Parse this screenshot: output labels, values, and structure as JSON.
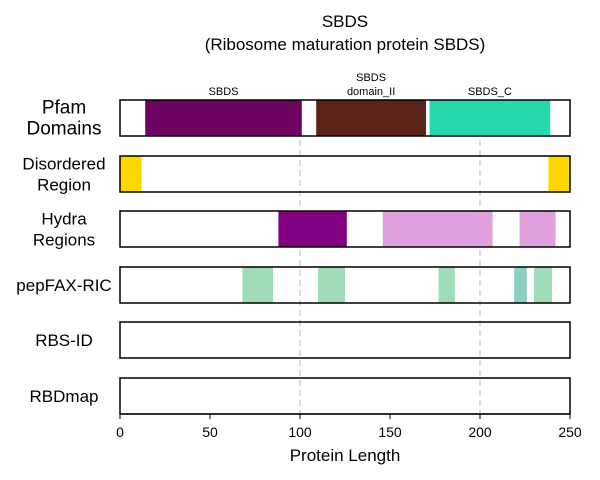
{
  "chart_data": {
    "type": "domain-track",
    "title": "SBDS",
    "subtitle": "(Ribosome maturation protein SBDS)",
    "xlabel": "Protein Length",
    "xlim": [
      0,
      250
    ],
    "xticks": [
      0,
      50,
      100,
      150,
      200,
      250
    ],
    "vlines": [
      100,
      200
    ],
    "tracks": [
      {
        "id": "pfam",
        "label_lines": [
          "Pfam",
          "Domains"
        ],
        "segments": [
          {
            "start": 14,
            "end": 101,
            "color": "#6d0461",
            "label_lines": [
              "SBDS"
            ]
          },
          {
            "start": 109,
            "end": 170,
            "color": "#5c2418",
            "label_lines": [
              "SBDS",
              "domain_II"
            ]
          },
          {
            "start": 172,
            "end": 239,
            "color": "#26d9ad",
            "label_lines": [
              "SBDS_C"
            ]
          }
        ]
      },
      {
        "id": "disordered",
        "label_lines": [
          "Disordered",
          "Region"
        ],
        "segments": [
          {
            "start": 0,
            "end": 12,
            "color": "#ffd700"
          },
          {
            "start": 238,
            "end": 250,
            "color": "#ffd700"
          }
        ]
      },
      {
        "id": "hydra",
        "label_lines": [
          "Hydra",
          "Regions"
        ],
        "segments": [
          {
            "start": 88,
            "end": 126,
            "color": "#800080"
          },
          {
            "start": 146,
            "end": 207,
            "color": "#dda0dd"
          },
          {
            "start": 222,
            "end": 242,
            "color": "#dda0dd"
          }
        ]
      },
      {
        "id": "pepfax",
        "label_lines": [
          "pepFAX-RIC"
        ],
        "segments": [
          {
            "start": 68,
            "end": 85,
            "color": "#a0dcb8"
          },
          {
            "start": 110,
            "end": 125,
            "color": "#a0dcb8"
          },
          {
            "start": 177,
            "end": 186,
            "color": "#a0dcb8"
          },
          {
            "start": 219,
            "end": 226,
            "color": "#8ecfc4"
          },
          {
            "start": 230,
            "end": 240,
            "color": "#a0dcb8"
          }
        ]
      },
      {
        "id": "rbsid",
        "label_lines": [
          "RBS-ID"
        ],
        "segments": []
      },
      {
        "id": "rbdmap",
        "label_lines": [
          "RBDmap"
        ],
        "segments": []
      }
    ]
  }
}
